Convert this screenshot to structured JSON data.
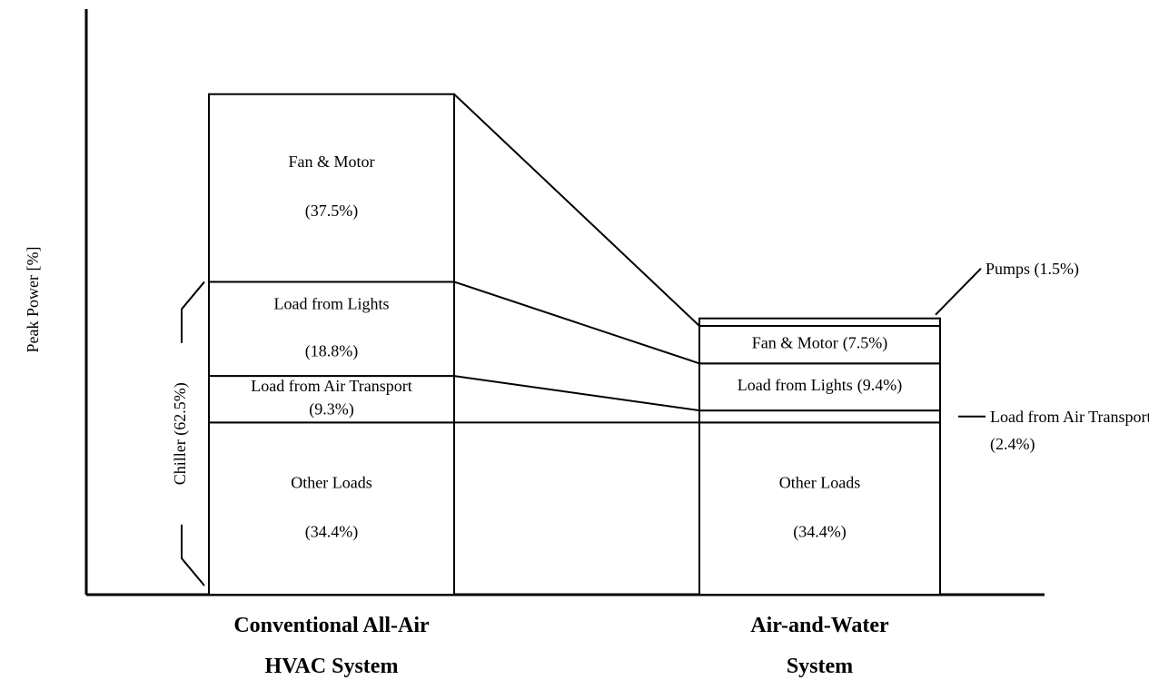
{
  "chart_data": {
    "type": "stacked_bar",
    "y_axis_label": "Peak Power [%]",
    "bracket_label": "Chiller (62.5%)",
    "categories": [
      "Conventional All-Air HVAC System",
      "Air-and-Water System"
    ],
    "ylim": [
      0,
      117
    ],
    "series": [
      {
        "name": "Other Loads",
        "color": "#ffffff",
        "values": [
          34.4,
          34.4
        ],
        "value_labels": [
          "(34.4%)",
          "(34.4%)"
        ]
      },
      {
        "name": "Load from Air Transport",
        "color": "#ffffff",
        "values": [
          9.3,
          2.4
        ],
        "value_labels": [
          "(9.3%)",
          "(2.4%)"
        ]
      },
      {
        "name": "Load from Lights",
        "color": "#ffffff",
        "values": [
          18.8,
          9.4
        ],
        "value_labels": [
          "(18.8%)",
          "(9.4%)"
        ]
      },
      {
        "name": "Fan & Motor",
        "color": "#ffffff",
        "values": [
          37.5,
          7.5
        ],
        "value_labels": [
          "(37.5%)",
          "(7.5%)"
        ]
      },
      {
        "name": "Pumps",
        "color": "#ffffff",
        "values": [
          null,
          1.5
        ],
        "value_labels": [
          null,
          "(1.5%)"
        ]
      }
    ]
  }
}
